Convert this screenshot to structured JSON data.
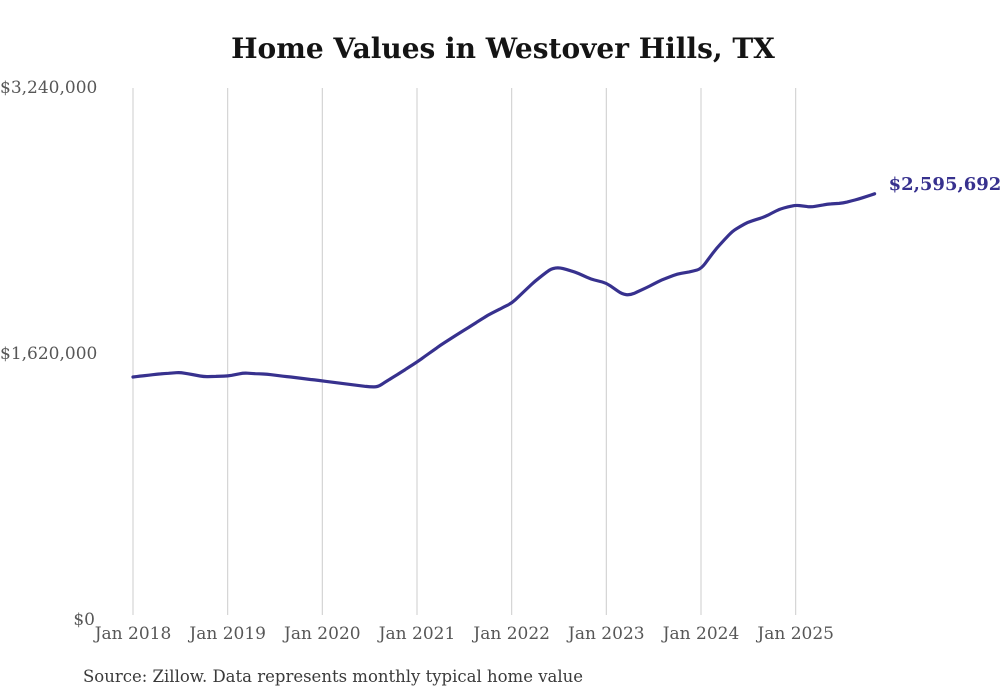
{
  "title": "Home Values in Westover Hills, TX",
  "source_note": "Source: Zillow. Data represents monthly typical home value",
  "end_label": "$2,595,692",
  "colors": {
    "line": "#37318e",
    "grid": "#cccccc",
    "axis_text": "#575757",
    "title_text": "#141414",
    "background": "#ffffff"
  },
  "chart_data": {
    "type": "line",
    "title": "Home Values in Westover Hills, TX",
    "xlabel": "",
    "ylabel": "",
    "ylim": [
      0,
      3240000
    ],
    "grid": "vertical-only",
    "legend": "none",
    "x_ticks": [
      "Jan 2018",
      "Jan 2019",
      "Jan 2020",
      "Jan 2021",
      "Jan 2022",
      "Jan 2023",
      "Jan 2024",
      "Jan 2025"
    ],
    "y_ticks": [
      {
        "label": "$0",
        "value": 0
      },
      {
        "label": "$1,620,000",
        "value": 1620000
      },
      {
        "label": "$3,240,000",
        "value": 3240000
      }
    ],
    "series": [
      {
        "name": "Typical home value",
        "frequency": "monthly",
        "start_month": "2018-01",
        "end_month": "2025-11",
        "values": [
          1480000,
          1486000,
          1491000,
          1497000,
          1501000,
          1504000,
          1508000,
          1499000,
          1491000,
          1482000,
          1483000,
          1485000,
          1486000,
          1495000,
          1504000,
          1502000,
          1499000,
          1497000,
          1491000,
          1485000,
          1480000,
          1474000,
          1468000,
          1462000,
          1456000,
          1450000,
          1444000,
          1438000,
          1432000,
          1426000,
          1420000,
          1419000,
          1450000,
          1480000,
          1510000,
          1541000,
          1571000,
          1606000,
          1640000,
          1675000,
          1705000,
          1736000,
          1766000,
          1796000,
          1827000,
          1857000,
          1881000,
          1906000,
          1930000,
          1975000,
          2020000,
          2065000,
          2103000,
          2140000,
          2147000,
          2134000,
          2120000,
          2099000,
          2077000,
          2065000,
          2052000,
          2019000,
          1985000,
          1979000,
          2000000,
          2022000,
          2047000,
          2071000,
          2089000,
          2107000,
          2116000,
          2125000,
          2138000,
          2202000,
          2266000,
          2318000,
          2369000,
          2397000,
          2424000,
          2439000,
          2454000,
          2479000,
          2503000,
          2515000,
          2527000,
          2521000,
          2515000,
          2524000,
          2533000,
          2536000,
          2539000,
          2552000,
          2564000,
          2580000,
          2595692
        ]
      }
    ],
    "last_point": {
      "date": "2025-11",
      "value": 2595692,
      "label": "$2,595,692"
    }
  }
}
